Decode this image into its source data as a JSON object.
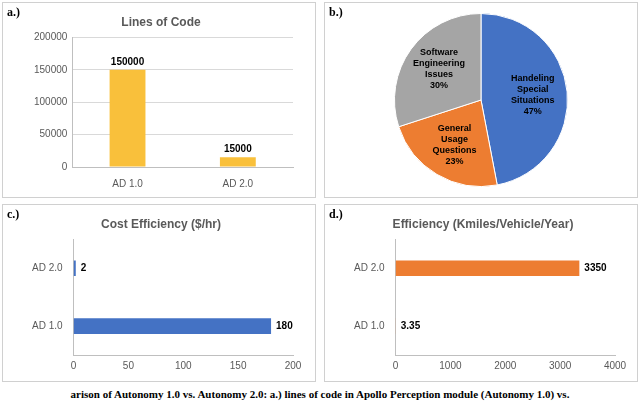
{
  "chart_data": [
    {
      "panel": "a.)",
      "type": "bar",
      "title": "Lines of Code",
      "categories": [
        "AD 1.0",
        "AD 2.0"
      ],
      "values": [
        150000,
        15000
      ],
      "color": "#f9c03b",
      "ylim": [
        0,
        200000
      ],
      "yticks": [
        0,
        50000,
        100000,
        150000,
        200000
      ],
      "grid": true,
      "data_labels": true
    },
    {
      "panel": "b.)",
      "type": "pie",
      "categories": [
        "Handeling Special Situations",
        "General Usage Questions",
        "Software Engineering Issues"
      ],
      "values": [
        47,
        23,
        30
      ],
      "value_labels": [
        "47%",
        "23%",
        "30%"
      ],
      "colors": [
        "#4472c4",
        "#ed7d31",
        "#a5a5a5"
      ],
      "data_labels": true
    },
    {
      "panel": "c.)",
      "type": "bar",
      "orientation": "horizontal",
      "title": "Cost Efficiency ($/hr)",
      "categories": [
        "AD 2.0",
        "AD 1.0"
      ],
      "values": [
        2,
        180
      ],
      "color": "#4472c4",
      "xlim": [
        0,
        200
      ],
      "xticks": [
        0,
        50,
        100,
        150,
        200
      ],
      "grid": false,
      "data_labels": true
    },
    {
      "panel": "d.)",
      "type": "bar",
      "orientation": "horizontal",
      "title": "Efficiency (Kmiles/Vehicle/Year)",
      "categories": [
        "AD 2.0",
        "AD 1.0"
      ],
      "values": [
        3350,
        3.35
      ],
      "color": "#ed7d31",
      "xlim": [
        0,
        4000
      ],
      "xticks": [
        0,
        1000,
        2000,
        3000,
        4000
      ],
      "grid": false,
      "data_labels": true
    }
  ],
  "caption": "arison of Autonomy 1.0 vs. Autonomy 2.0: a.) lines of code in Apollo Perception module (Autonomy 1.0) vs."
}
